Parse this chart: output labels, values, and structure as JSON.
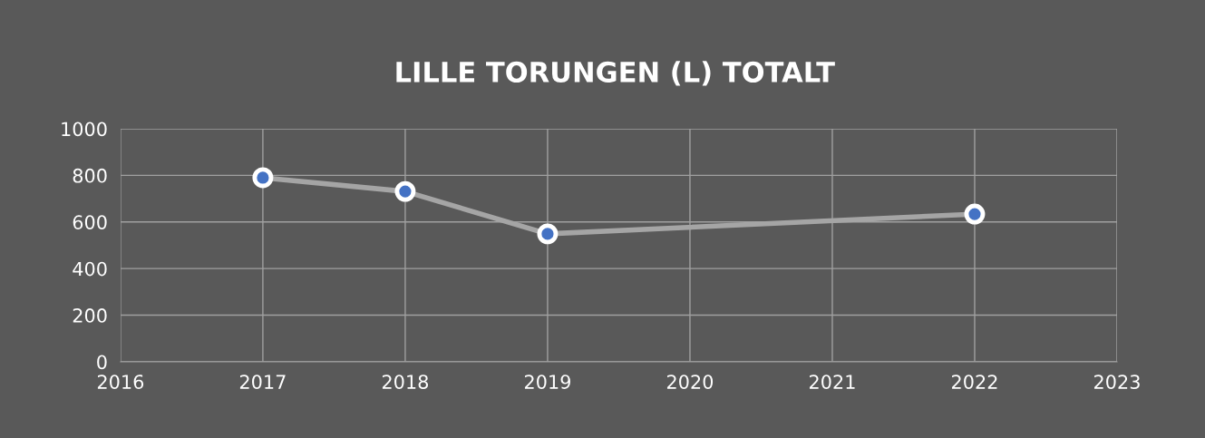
{
  "chart_data": {
    "type": "line",
    "title": "LILLE TORUNGEN (L) TOTALT",
    "x": [
      2017,
      2018,
      2019,
      2022
    ],
    "series": [
      {
        "color": "#a5a5a5",
        "values": [
          790,
          731,
          549,
          634
        ]
      }
    ],
    "marker": "circle",
    "xlim": [
      2016,
      2023
    ],
    "xticks": [
      2016,
      2017,
      2018,
      2019,
      2020,
      2021,
      2022,
      2023
    ],
    "ylim": [
      0,
      1000
    ],
    "yticks": [
      0,
      200,
      400,
      600,
      800,
      1000
    ],
    "grid": true,
    "legend": false
  }
}
